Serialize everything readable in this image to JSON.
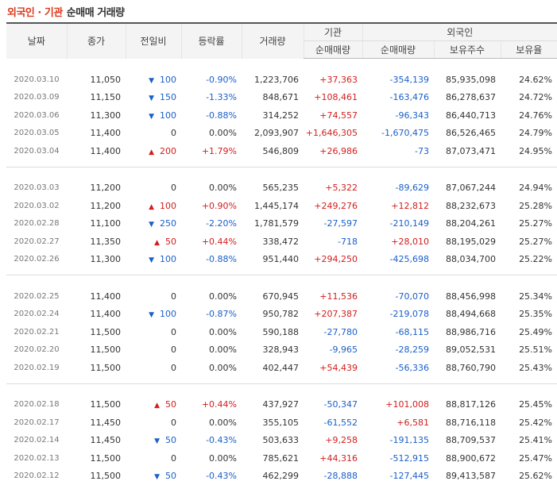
{
  "title": {
    "part1": "외국인 · 기관",
    "part2": "순매매 거래량"
  },
  "headers": {
    "date": "날짜",
    "close": "종가",
    "change": "전일비",
    "rate": "등락률",
    "volume": "거래량",
    "inst_group": "기관",
    "inst_net": "순매매량",
    "foreign_group": "외국인",
    "foreign_net": "순매매량",
    "foreign_holdings": "보유주수",
    "foreign_ratio": "보유율"
  },
  "groups": [
    [
      {
        "date": "2020.03.10",
        "close": "11,050",
        "dir": "down",
        "change": "100",
        "rate": "-0.90%",
        "volume": "1,223,706",
        "inst": "+37,363",
        "foreign": "-354,139",
        "holdings": "85,935,098",
        "ratio": "24.62%"
      },
      {
        "date": "2020.03.09",
        "close": "11,150",
        "dir": "down",
        "change": "150",
        "rate": "-1.33%",
        "volume": "848,671",
        "inst": "+108,461",
        "foreign": "-163,476",
        "holdings": "86,278,637",
        "ratio": "24.72%"
      },
      {
        "date": "2020.03.06",
        "close": "11,300",
        "dir": "down",
        "change": "100",
        "rate": "-0.88%",
        "volume": "314,252",
        "inst": "+74,557",
        "foreign": "-96,343",
        "holdings": "86,440,713",
        "ratio": "24.76%"
      },
      {
        "date": "2020.03.05",
        "close": "11,400",
        "dir": "none",
        "change": "0",
        "rate": "0.00%",
        "volume": "2,093,907",
        "inst": "+1,646,305",
        "foreign": "-1,670,475",
        "holdings": "86,526,465",
        "ratio": "24.79%"
      },
      {
        "date": "2020.03.04",
        "close": "11,400",
        "dir": "up",
        "change": "200",
        "rate": "+1.79%",
        "volume": "546,809",
        "inst": "+26,986",
        "foreign": "-73",
        "holdings": "87,073,471",
        "ratio": "24.95%"
      }
    ],
    [
      {
        "date": "2020.03.03",
        "close": "11,200",
        "dir": "none",
        "change": "0",
        "rate": "0.00%",
        "volume": "565,235",
        "inst": "+5,322",
        "foreign": "-89,629",
        "holdings": "87,067,244",
        "ratio": "24.94%"
      },
      {
        "date": "2020.03.02",
        "close": "11,200",
        "dir": "up",
        "change": "100",
        "rate": "+0.90%",
        "volume": "1,445,174",
        "inst": "+249,276",
        "foreign": "+12,812",
        "holdings": "88,232,673",
        "ratio": "25.28%"
      },
      {
        "date": "2020.02.28",
        "close": "11,100",
        "dir": "down",
        "change": "250",
        "rate": "-2.20%",
        "volume": "1,781,579",
        "inst": "-27,597",
        "foreign": "-210,149",
        "holdings": "88,204,261",
        "ratio": "25.27%"
      },
      {
        "date": "2020.02.27",
        "close": "11,350",
        "dir": "up",
        "change": "50",
        "rate": "+0.44%",
        "volume": "338,472",
        "inst": "-718",
        "foreign": "+28,010",
        "holdings": "88,195,029",
        "ratio": "25.27%"
      },
      {
        "date": "2020.02.26",
        "close": "11,300",
        "dir": "down",
        "change": "100",
        "rate": "-0.88%",
        "volume": "951,440",
        "inst": "+294,250",
        "foreign": "-425,698",
        "holdings": "88,034,700",
        "ratio": "25.22%"
      }
    ],
    [
      {
        "date": "2020.02.25",
        "close": "11,400",
        "dir": "none",
        "change": "0",
        "rate": "0.00%",
        "volume": "670,945",
        "inst": "+11,536",
        "foreign": "-70,070",
        "holdings": "88,456,998",
        "ratio": "25.34%"
      },
      {
        "date": "2020.02.24",
        "close": "11,400",
        "dir": "down",
        "change": "100",
        "rate": "-0.87%",
        "volume": "950,782",
        "inst": "+207,387",
        "foreign": "-219,078",
        "holdings": "88,494,668",
        "ratio": "25.35%"
      },
      {
        "date": "2020.02.21",
        "close": "11,500",
        "dir": "none",
        "change": "0",
        "rate": "0.00%",
        "volume": "590,188",
        "inst": "-27,780",
        "foreign": "-68,115",
        "holdings": "88,986,716",
        "ratio": "25.49%"
      },
      {
        "date": "2020.02.20",
        "close": "11,500",
        "dir": "none",
        "change": "0",
        "rate": "0.00%",
        "volume": "328,943",
        "inst": "-9,965",
        "foreign": "-28,259",
        "holdings": "89,052,531",
        "ratio": "25.51%"
      },
      {
        "date": "2020.02.19",
        "close": "11,500",
        "dir": "none",
        "change": "0",
        "rate": "0.00%",
        "volume": "402,447",
        "inst": "+54,439",
        "foreign": "-56,336",
        "holdings": "88,760,790",
        "ratio": "25.43%"
      }
    ],
    [
      {
        "date": "2020.02.18",
        "close": "11,500",
        "dir": "up",
        "change": "50",
        "rate": "+0.44%",
        "volume": "437,927",
        "inst": "-50,347",
        "foreign": "+101,008",
        "holdings": "88,817,126",
        "ratio": "25.45%"
      },
      {
        "date": "2020.02.17",
        "close": "11,450",
        "dir": "none",
        "change": "0",
        "rate": "0.00%",
        "volume": "355,105",
        "inst": "-61,552",
        "foreign": "+6,581",
        "holdings": "88,716,118",
        "ratio": "25.42%"
      },
      {
        "date": "2020.02.14",
        "close": "11,450",
        "dir": "down",
        "change": "50",
        "rate": "-0.43%",
        "volume": "503,633",
        "inst": "+9,258",
        "foreign": "-191,135",
        "holdings": "88,709,537",
        "ratio": "25.41%"
      },
      {
        "date": "2020.02.13",
        "close": "11,500",
        "dir": "none",
        "change": "0",
        "rate": "0.00%",
        "volume": "785,621",
        "inst": "+44,316",
        "foreign": "-512,915",
        "holdings": "88,900,672",
        "ratio": "25.47%"
      },
      {
        "date": "2020.02.12",
        "close": "11,500",
        "dir": "down",
        "change": "50",
        "rate": "-0.43%",
        "volume": "462,299",
        "inst": "-28,888",
        "foreign": "-127,445",
        "holdings": "89,413,587",
        "ratio": "25.62%"
      }
    ]
  ]
}
